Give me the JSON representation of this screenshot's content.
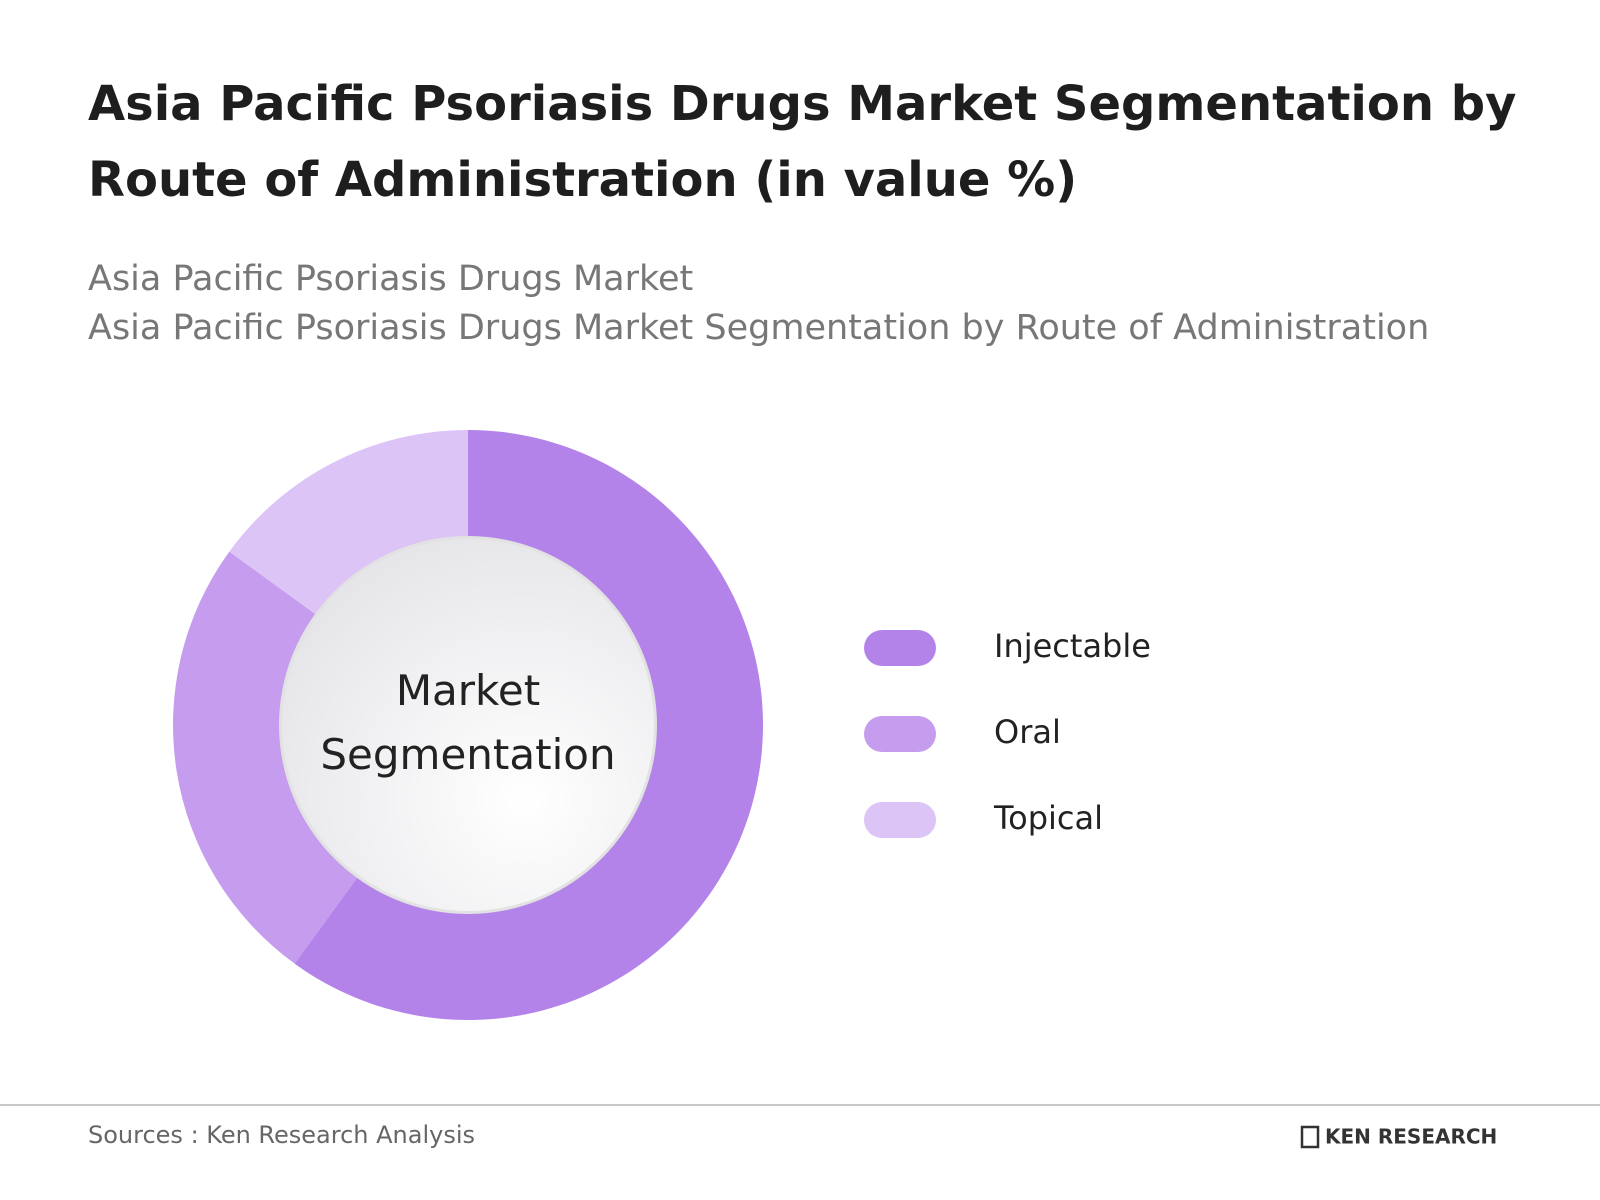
{
  "chart_data": {
    "type": "donut",
    "title": "Asia Pacific Psoriasis Drugs Market Segmentation by Route of Administration (in value %)",
    "subtitles": [
      "Asia Pacific Psoriasis Drugs Market",
      "Asia Pacific Psoriasis Drugs Market Segmentation by Route of Administration"
    ],
    "center_label": "Market Segmentation",
    "categories": [
      "Injectable",
      "Oral",
      "Topical"
    ],
    "values": [
      60,
      25,
      15
    ],
    "colors": [
      "#b383ea",
      "#c59cee",
      "#dcc4f7"
    ],
    "legend": "right",
    "source": "Sources : Ken Research Analysis",
    "brand": "KEN RESEARCH"
  }
}
